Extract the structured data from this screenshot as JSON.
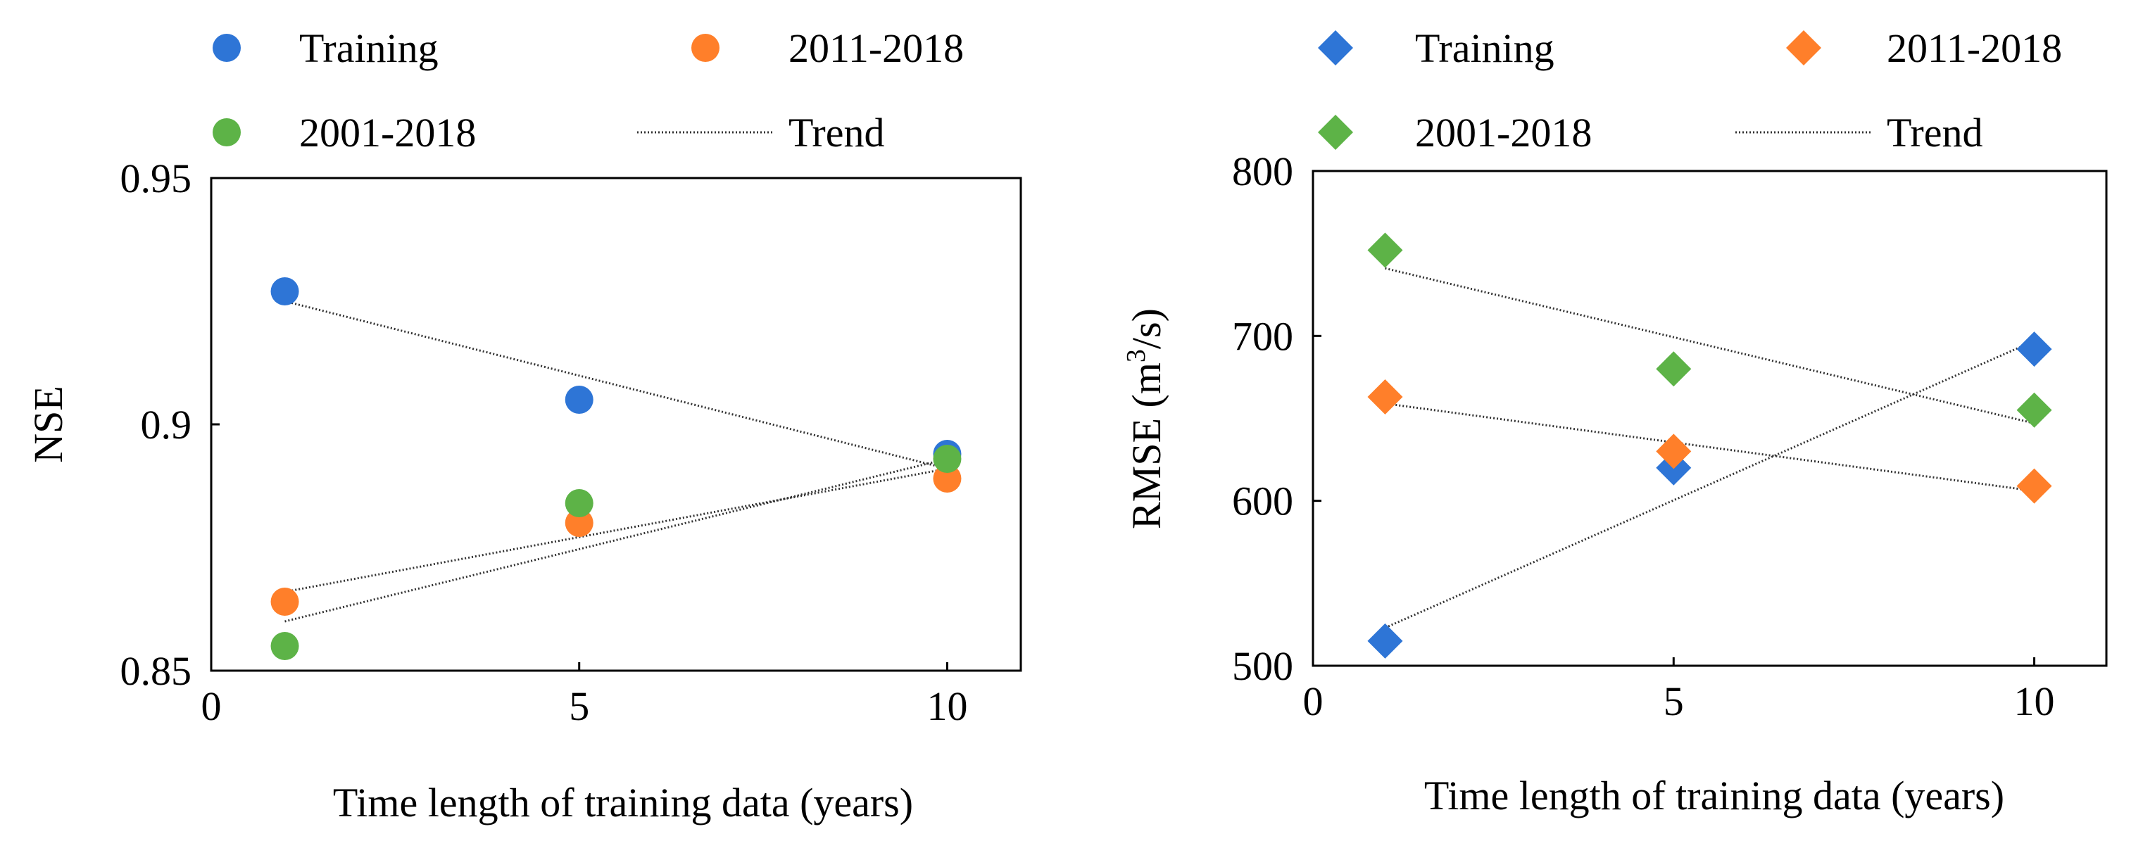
{
  "chart_data": [
    {
      "type": "scatter",
      "ylabel": "NSE",
      "xlabel": "Time length of  training data (years)",
      "xlim": [
        0,
        11
      ],
      "ylim": [
        0.85,
        0.95
      ],
      "xticks": [
        0,
        5,
        10
      ],
      "xtick_labels": [
        "0",
        "5",
        "10"
      ],
      "yticks": [
        0.85,
        0.9,
        0.95
      ],
      "ytick_labels": [
        "0.85",
        "0.9",
        "0.95"
      ],
      "marker": "circle",
      "legend": [
        "Training",
        "2011-2018",
        "2001-2018",
        "Trend"
      ],
      "series": [
        {
          "name": "Training",
          "color": "#2E75D6",
          "x": [
            1,
            5,
            10
          ],
          "y": [
            0.927,
            0.905,
            0.894
          ]
        },
        {
          "name": "2011-2018",
          "color": "#FF7F2A",
          "x": [
            1,
            5,
            10
          ],
          "y": [
            0.864,
            0.88,
            0.889
          ]
        },
        {
          "name": "2001-2018",
          "color": "#5DB347",
          "x": [
            1,
            5,
            10
          ],
          "y": [
            0.855,
            0.884,
            0.893
          ]
        }
      ],
      "trend_label": "Trend",
      "trends": [
        {
          "series": "Training",
          "x": [
            1,
            10
          ],
          "y": [
            0.925,
            0.891
          ]
        },
        {
          "series": "2011-2018",
          "x": [
            1,
            10
          ],
          "y": [
            0.866,
            0.891
          ]
        },
        {
          "series": "2001-2018",
          "x": [
            1,
            10
          ],
          "y": [
            0.86,
            0.893
          ]
        }
      ]
    },
    {
      "type": "scatter",
      "ylabel": "RMSE (m",
      "ylabel_superscript": "3",
      "ylabel_suffix": "/s)",
      "xlabel": "Time length of  training data (years)",
      "xlim": [
        0,
        11
      ],
      "ylim": [
        500,
        800
      ],
      "xticks": [
        0,
        5,
        10
      ],
      "xtick_labels": [
        "0",
        "5",
        "10"
      ],
      "yticks": [
        500,
        600,
        700,
        800
      ],
      "ytick_labels": [
        "500",
        "600",
        "700",
        "800"
      ],
      "marker": "diamond",
      "legend": [
        "Training",
        "2011-2018",
        "2001-2018",
        "Trend"
      ],
      "series": [
        {
          "name": "Training",
          "color": "#2E75D6",
          "x": [
            1,
            5,
            10
          ],
          "y": [
            515,
            620,
            692
          ]
        },
        {
          "name": "2011-2018",
          "color": "#FF7F2A",
          "x": [
            1,
            5,
            10
          ],
          "y": [
            663,
            630,
            609
          ]
        },
        {
          "name": "2001-2018",
          "color": "#5DB347",
          "x": [
            1,
            5,
            10
          ],
          "y": [
            752,
            680,
            655
          ]
        }
      ],
      "trend_label": "Trend",
      "trends": [
        {
          "series": "Training",
          "x": [
            1,
            10
          ],
          "y": [
            523,
            697
          ]
        },
        {
          "series": "2011-2018",
          "x": [
            1,
            10
          ],
          "y": [
            659,
            606
          ]
        },
        {
          "series": "2001-2018",
          "x": [
            1,
            10
          ],
          "y": [
            741,
            647
          ]
        }
      ]
    }
  ]
}
